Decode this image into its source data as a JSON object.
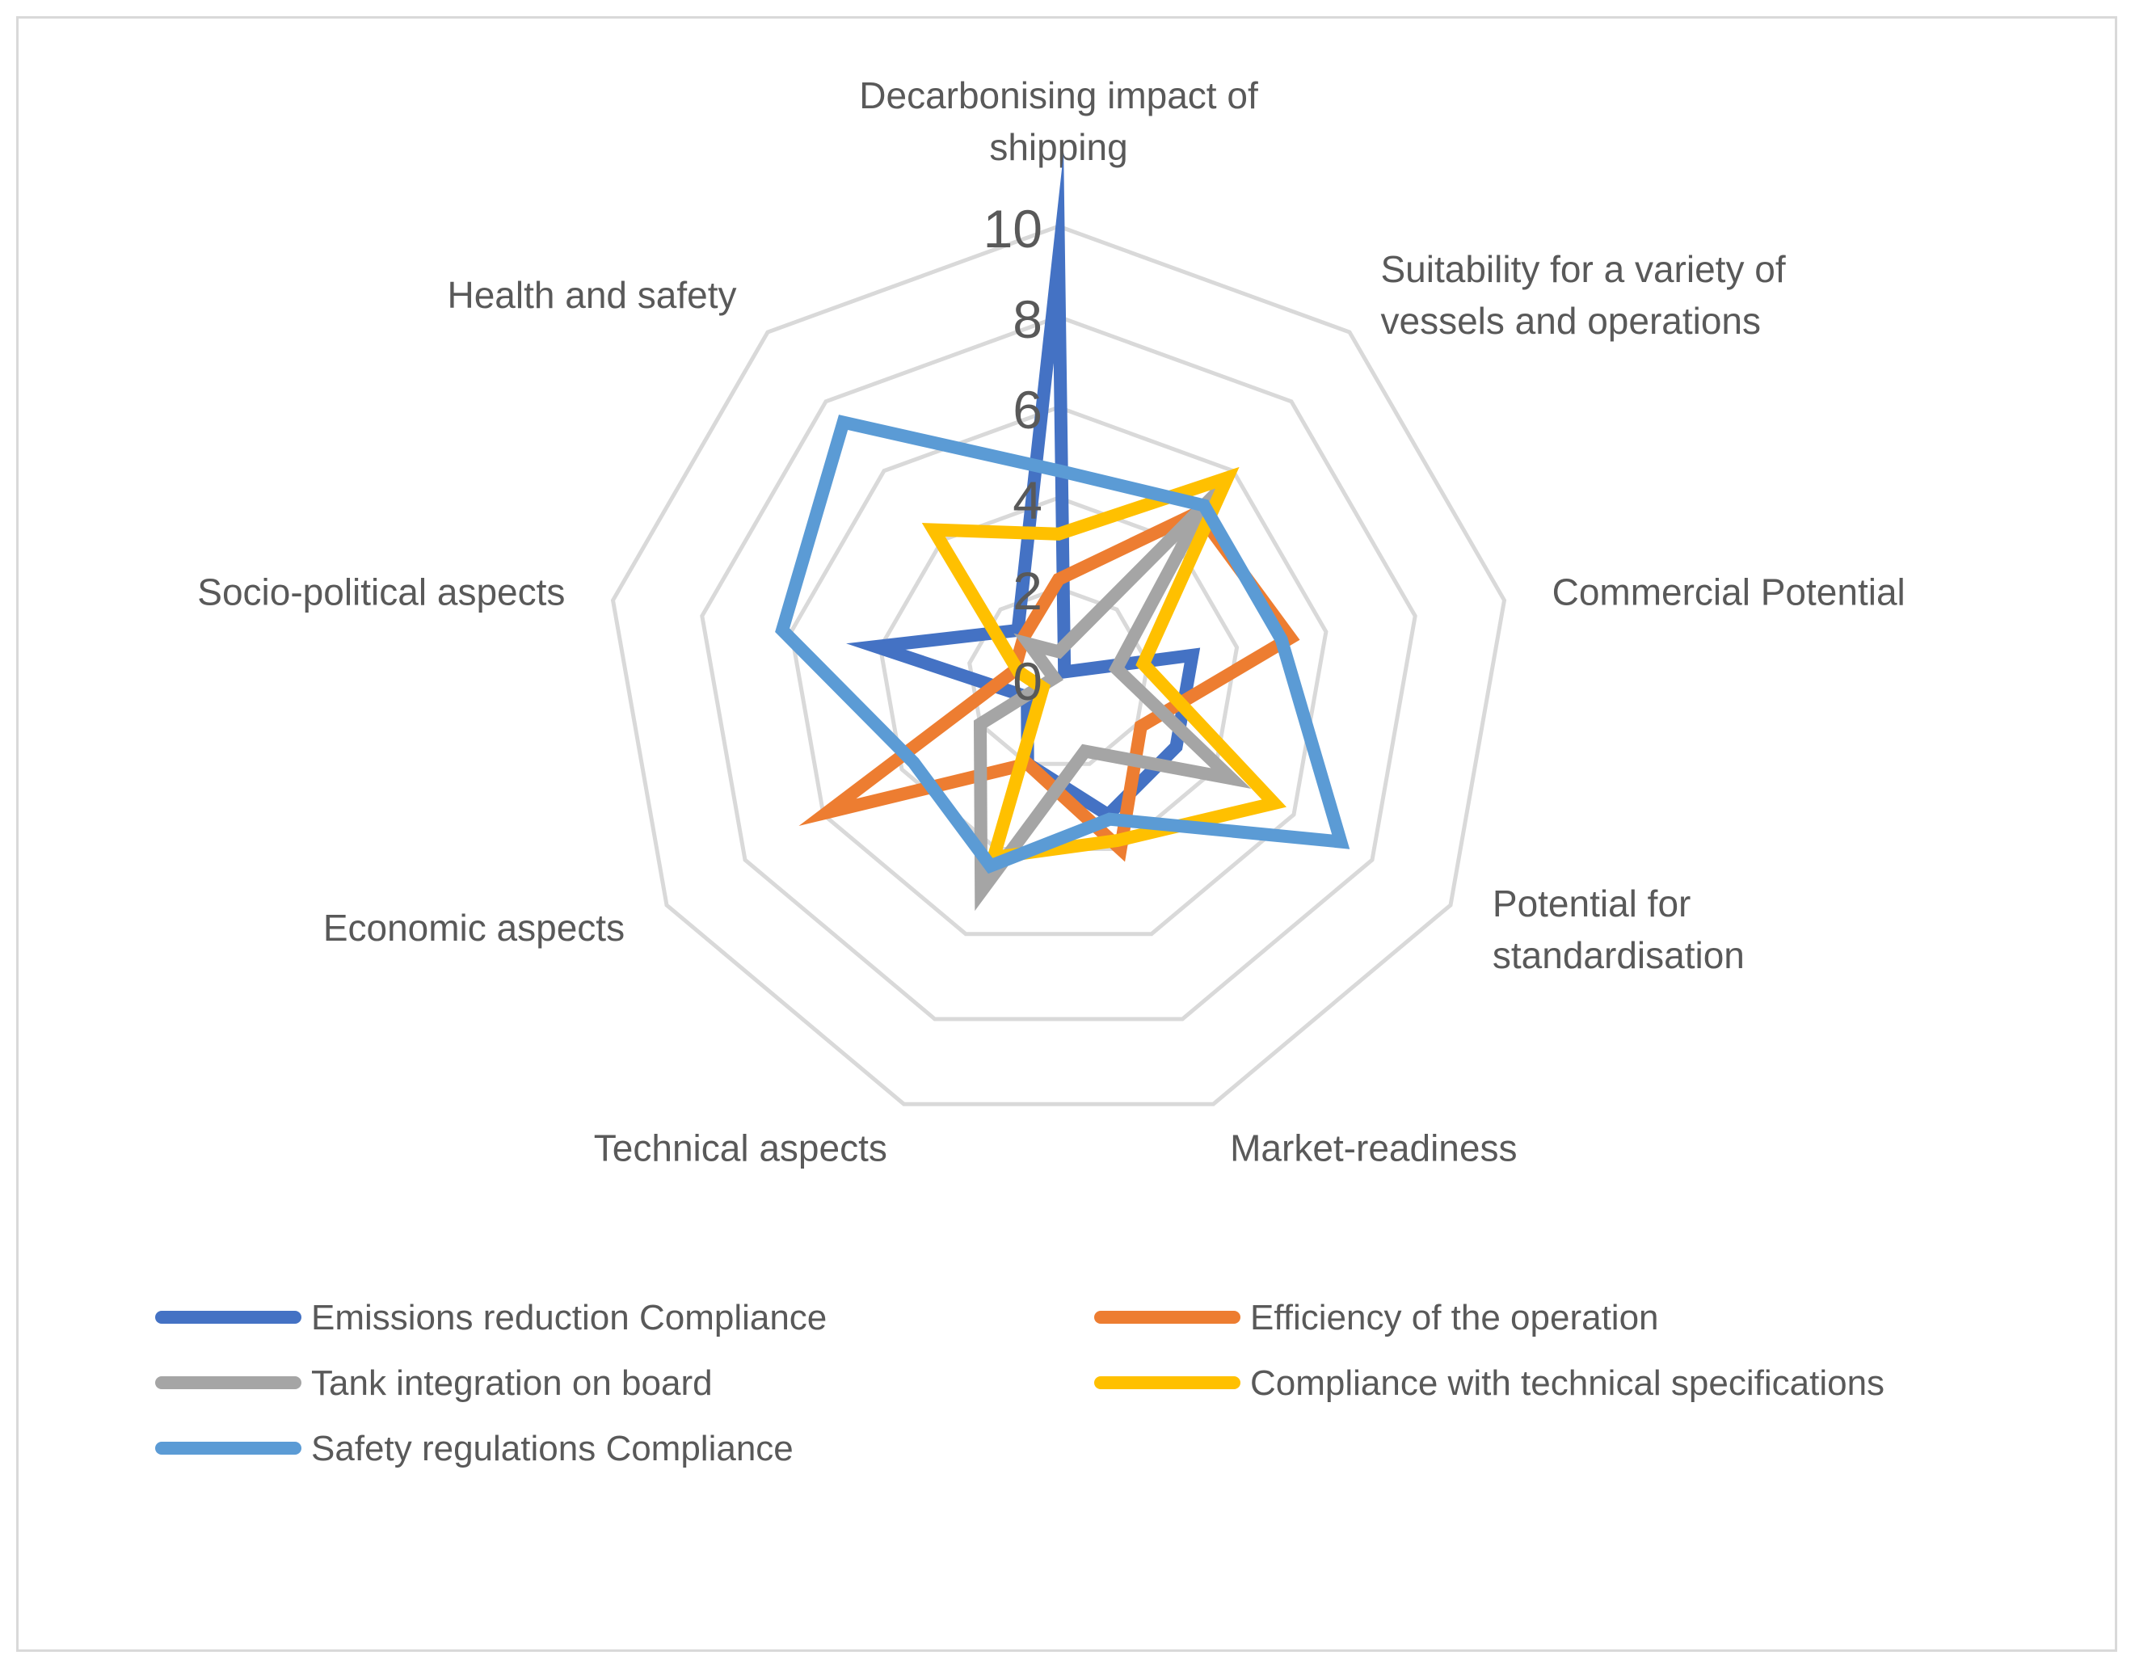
{
  "chart_data": {
    "type": "radar",
    "title": "",
    "axes": [
      "Decarbonising impact of shipping",
      "Suitability for a variety of vessels and operations",
      "Commercial Potential",
      "Potential for standardisation",
      "Market-readiness",
      "Technical aspects",
      "Economic aspects",
      "Socio-political aspects",
      "Health and safety"
    ],
    "axis_label_lines": [
      [
        "Decarbonising impact of",
        "shipping"
      ],
      [
        "Suitability for a variety of",
        "vessels and operations"
      ],
      [
        "Commercial Potential"
      ],
      [
        "Potential for",
        "standardisation"
      ],
      [
        "Market-readiness"
      ],
      [
        "Technical aspects"
      ],
      [
        "Economic aspects"
      ],
      [
        "Socio-political aspects"
      ],
      [
        "Health and safety"
      ]
    ],
    "radial_range": [
      0,
      10
    ],
    "radial_ticks": [
      "0",
      "2",
      "4",
      "6",
      "8",
      "10"
    ],
    "legend_position": "bottom",
    "series": [
      {
        "name": "Emissions reduction Compliance",
        "color": "#4472c4",
        "values": [
          9.3,
          0.2,
          3.0,
          3.0,
          3.2,
          2.0,
          0.8,
          4.1,
          1.4
        ]
      },
      {
        "name": "Efficiency of the operation",
        "color": "#ed7d31",
        "values": [
          2.2,
          4.8,
          5.2,
          2.1,
          4.0,
          2.0,
          5.9,
          1.0,
          1.2
        ]
      },
      {
        "name": "Tank integration on board",
        "color": "#a5a5a5",
        "values": [
          0.6,
          5.0,
          1.3,
          4.4,
          1.7,
          5.0,
          2.0,
          0.1,
          1.0
        ]
      },
      {
        "name": "Compliance with technical specifications",
        "color": "#ffc000",
        "values": [
          3.2,
          5.8,
          1.9,
          5.5,
          3.8,
          4.2,
          0.4,
          0.9,
          4.3
        ]
      },
      {
        "name": "Safety regulations Compliance",
        "color": "#5b9bd5",
        "values": [
          4.6,
          5.0,
          5.0,
          7.2,
          3.3,
          4.4,
          3.7,
          6.2,
          7.4
        ]
      }
    ]
  }
}
